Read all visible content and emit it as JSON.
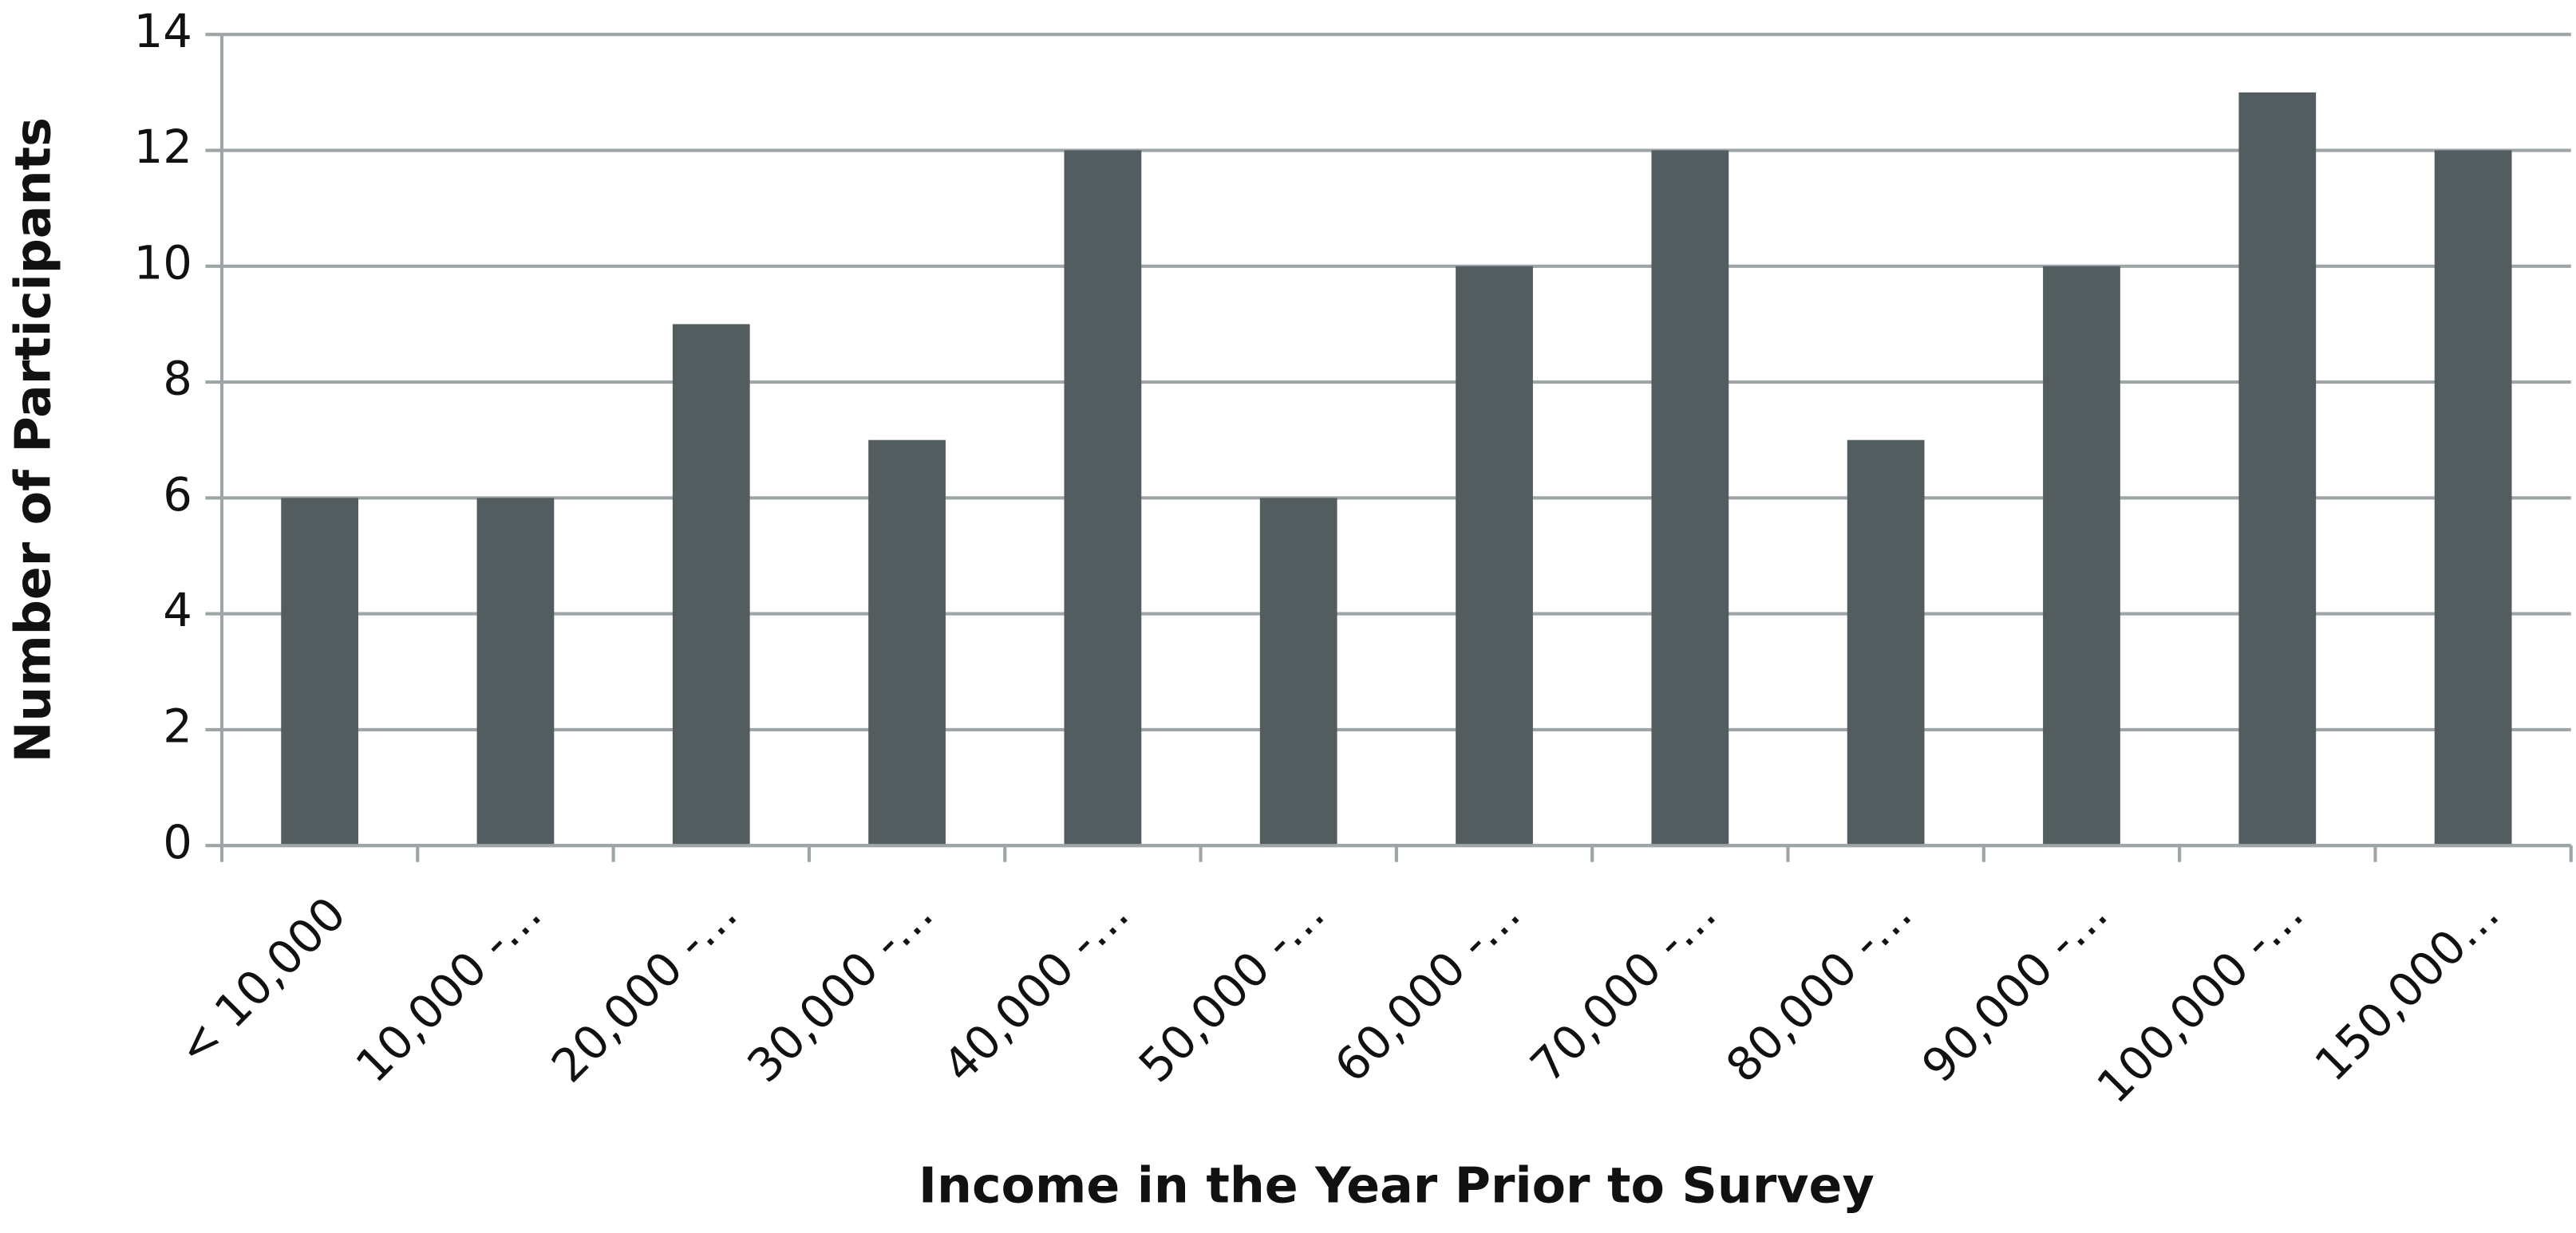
{
  "chart_data": {
    "type": "bar",
    "x_label": "Income in the Year Prior to Survey",
    "y_label": "Number of Participants",
    "categories": [
      "< 10,000",
      "10,000 -…",
      "20,000 -…",
      "30,000 -…",
      "40,000 -…",
      "50,000 -…",
      "60,000 -…",
      "70,000 -…",
      "80,000 -…",
      "90,000 -…",
      "100,000 -…",
      "150,000…"
    ],
    "values": [
      6,
      6,
      9,
      7,
      12,
      6,
      10,
      12,
      7,
      10,
      13,
      12
    ],
    "color": "#535c5e",
    "ylim": [
      0,
      14
    ],
    "yticks": [
      0,
      2,
      4,
      6,
      8,
      10,
      12,
      14
    ],
    "grid": true
  }
}
